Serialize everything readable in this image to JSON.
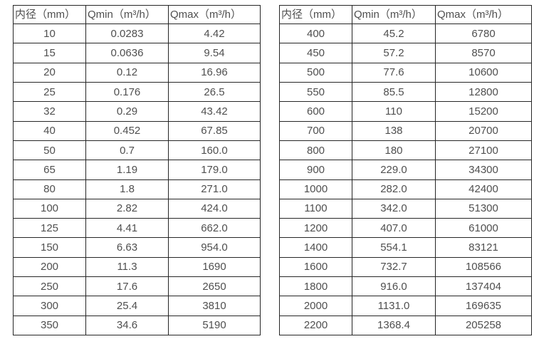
{
  "colors": {
    "background": "#ffffff",
    "border": "#262626",
    "text": "#4f4f4f"
  },
  "chart_data": {
    "type": "table",
    "tables": [
      {
        "name": "flow-rates-small-diameters",
        "headers": [
          "内径（mm）",
          "Qmin（m³/h）",
          "Qmax（m³/h）"
        ],
        "rows": [
          [
            "10",
            "0.0283",
            "4.42"
          ],
          [
            "15",
            "0.0636",
            "9.54"
          ],
          [
            "20",
            "0.12",
            "16.96"
          ],
          [
            "25",
            "0.176",
            "26.5"
          ],
          [
            "32",
            "0.29",
            "43.42"
          ],
          [
            "40",
            "0.452",
            "67.85"
          ],
          [
            "50",
            "0.7",
            "160.0"
          ],
          [
            "65",
            "1.19",
            "179.0"
          ],
          [
            "80",
            "1.8",
            "271.0"
          ],
          [
            "100",
            "2.82",
            "424.0"
          ],
          [
            "125",
            "4.41",
            "662.0"
          ],
          [
            "150",
            "6.63",
            "954.0"
          ],
          [
            "200",
            "11.3",
            "1690"
          ],
          [
            "250",
            "17.6",
            "2650"
          ],
          [
            "300",
            "25.4",
            "3810"
          ],
          [
            "350",
            "34.6",
            "5190"
          ]
        ]
      },
      {
        "name": "flow-rates-large-diameters",
        "headers": [
          "内径（mm）",
          "Qmin（m³/h）",
          "Qmax（m³/h）"
        ],
        "rows": [
          [
            "400",
            "45.2",
            "6780"
          ],
          [
            "450",
            "57.2",
            "8570"
          ],
          [
            "500",
            "77.6",
            "10600"
          ],
          [
            "550",
            "85.5",
            "12800"
          ],
          [
            "600",
            "110",
            "15200"
          ],
          [
            "700",
            "138",
            "20700"
          ],
          [
            "800",
            "180",
            "27100"
          ],
          [
            "900",
            "229.0",
            "34300"
          ],
          [
            "1000",
            "282.0",
            "42400"
          ],
          [
            "1100",
            "342.0",
            "51300"
          ],
          [
            "1200",
            "407.0",
            "61000"
          ],
          [
            "1400",
            "554.1",
            "83121"
          ],
          [
            "1600",
            "732.7",
            "108566"
          ],
          [
            "1800",
            "916.0",
            "137404"
          ],
          [
            "2000",
            "1131.0",
            "169635"
          ],
          [
            "2200",
            "1368.4",
            "205258"
          ]
        ]
      }
    ]
  }
}
